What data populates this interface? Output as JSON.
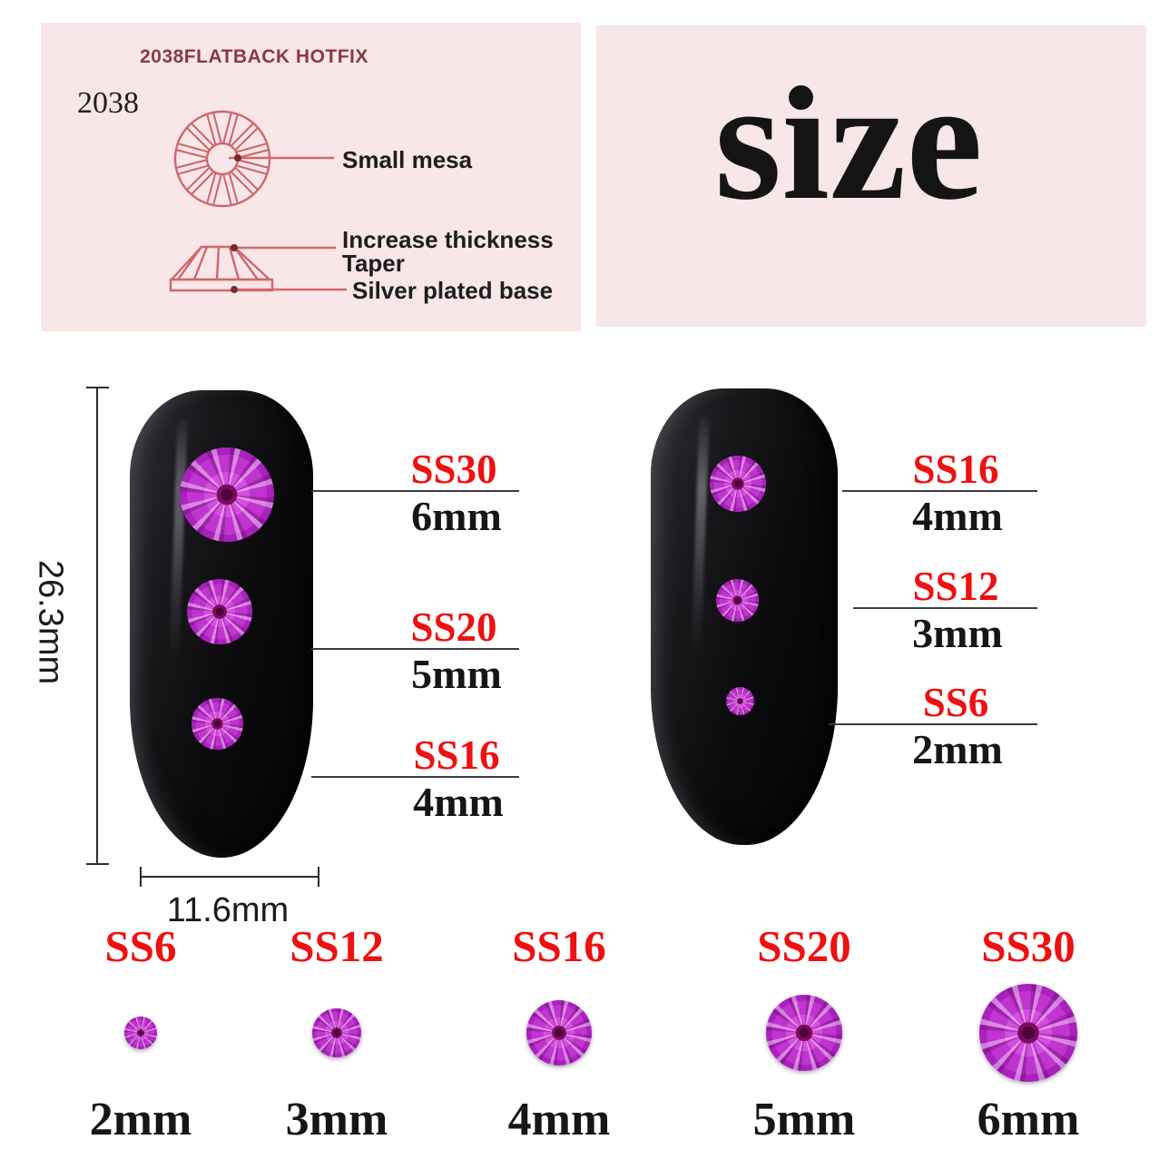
{
  "spec_panel": {
    "title": "2038FLATBACK HOTFIX",
    "model": "2038",
    "top_view_label": "Small mesa",
    "side_view_labels": [
      "Increase thickness",
      "Taper",
      "Silver plated base"
    ]
  },
  "size_panel": {
    "word": "size",
    "word_pre": "s",
    "word_i": "ı",
    "word_post": "ze"
  },
  "left_nail": {
    "height_label": "26.3mm",
    "width_label": "11.6mm",
    "annotations": [
      {
        "code": "SS30",
        "size": "6mm"
      },
      {
        "code": "SS20",
        "size": "5mm"
      },
      {
        "code": "SS16",
        "size": "4mm"
      }
    ]
  },
  "right_nail": {
    "annotations": [
      {
        "code": "SS16",
        "size": "4mm"
      },
      {
        "code": "SS12",
        "size": "3mm"
      },
      {
        "code": "SS6",
        "size": "2mm"
      }
    ]
  },
  "size_row": [
    {
      "code": "SS6",
      "size": "2mm"
    },
    {
      "code": "SS12",
      "size": "3mm"
    },
    {
      "code": "SS16",
      "size": "4mm"
    },
    {
      "code": "SS20",
      "size": "5mm"
    },
    {
      "code": "SS30",
      "size": "6mm"
    }
  ],
  "colors": {
    "accent_red": "#ee1111",
    "panel_pink": "#f8e6e8",
    "diagram_stroke": "#cf686c",
    "title_maroon": "#8a3a42",
    "stone_magenta": "#c934d4",
    "nail_black": "#0d0d10"
  }
}
